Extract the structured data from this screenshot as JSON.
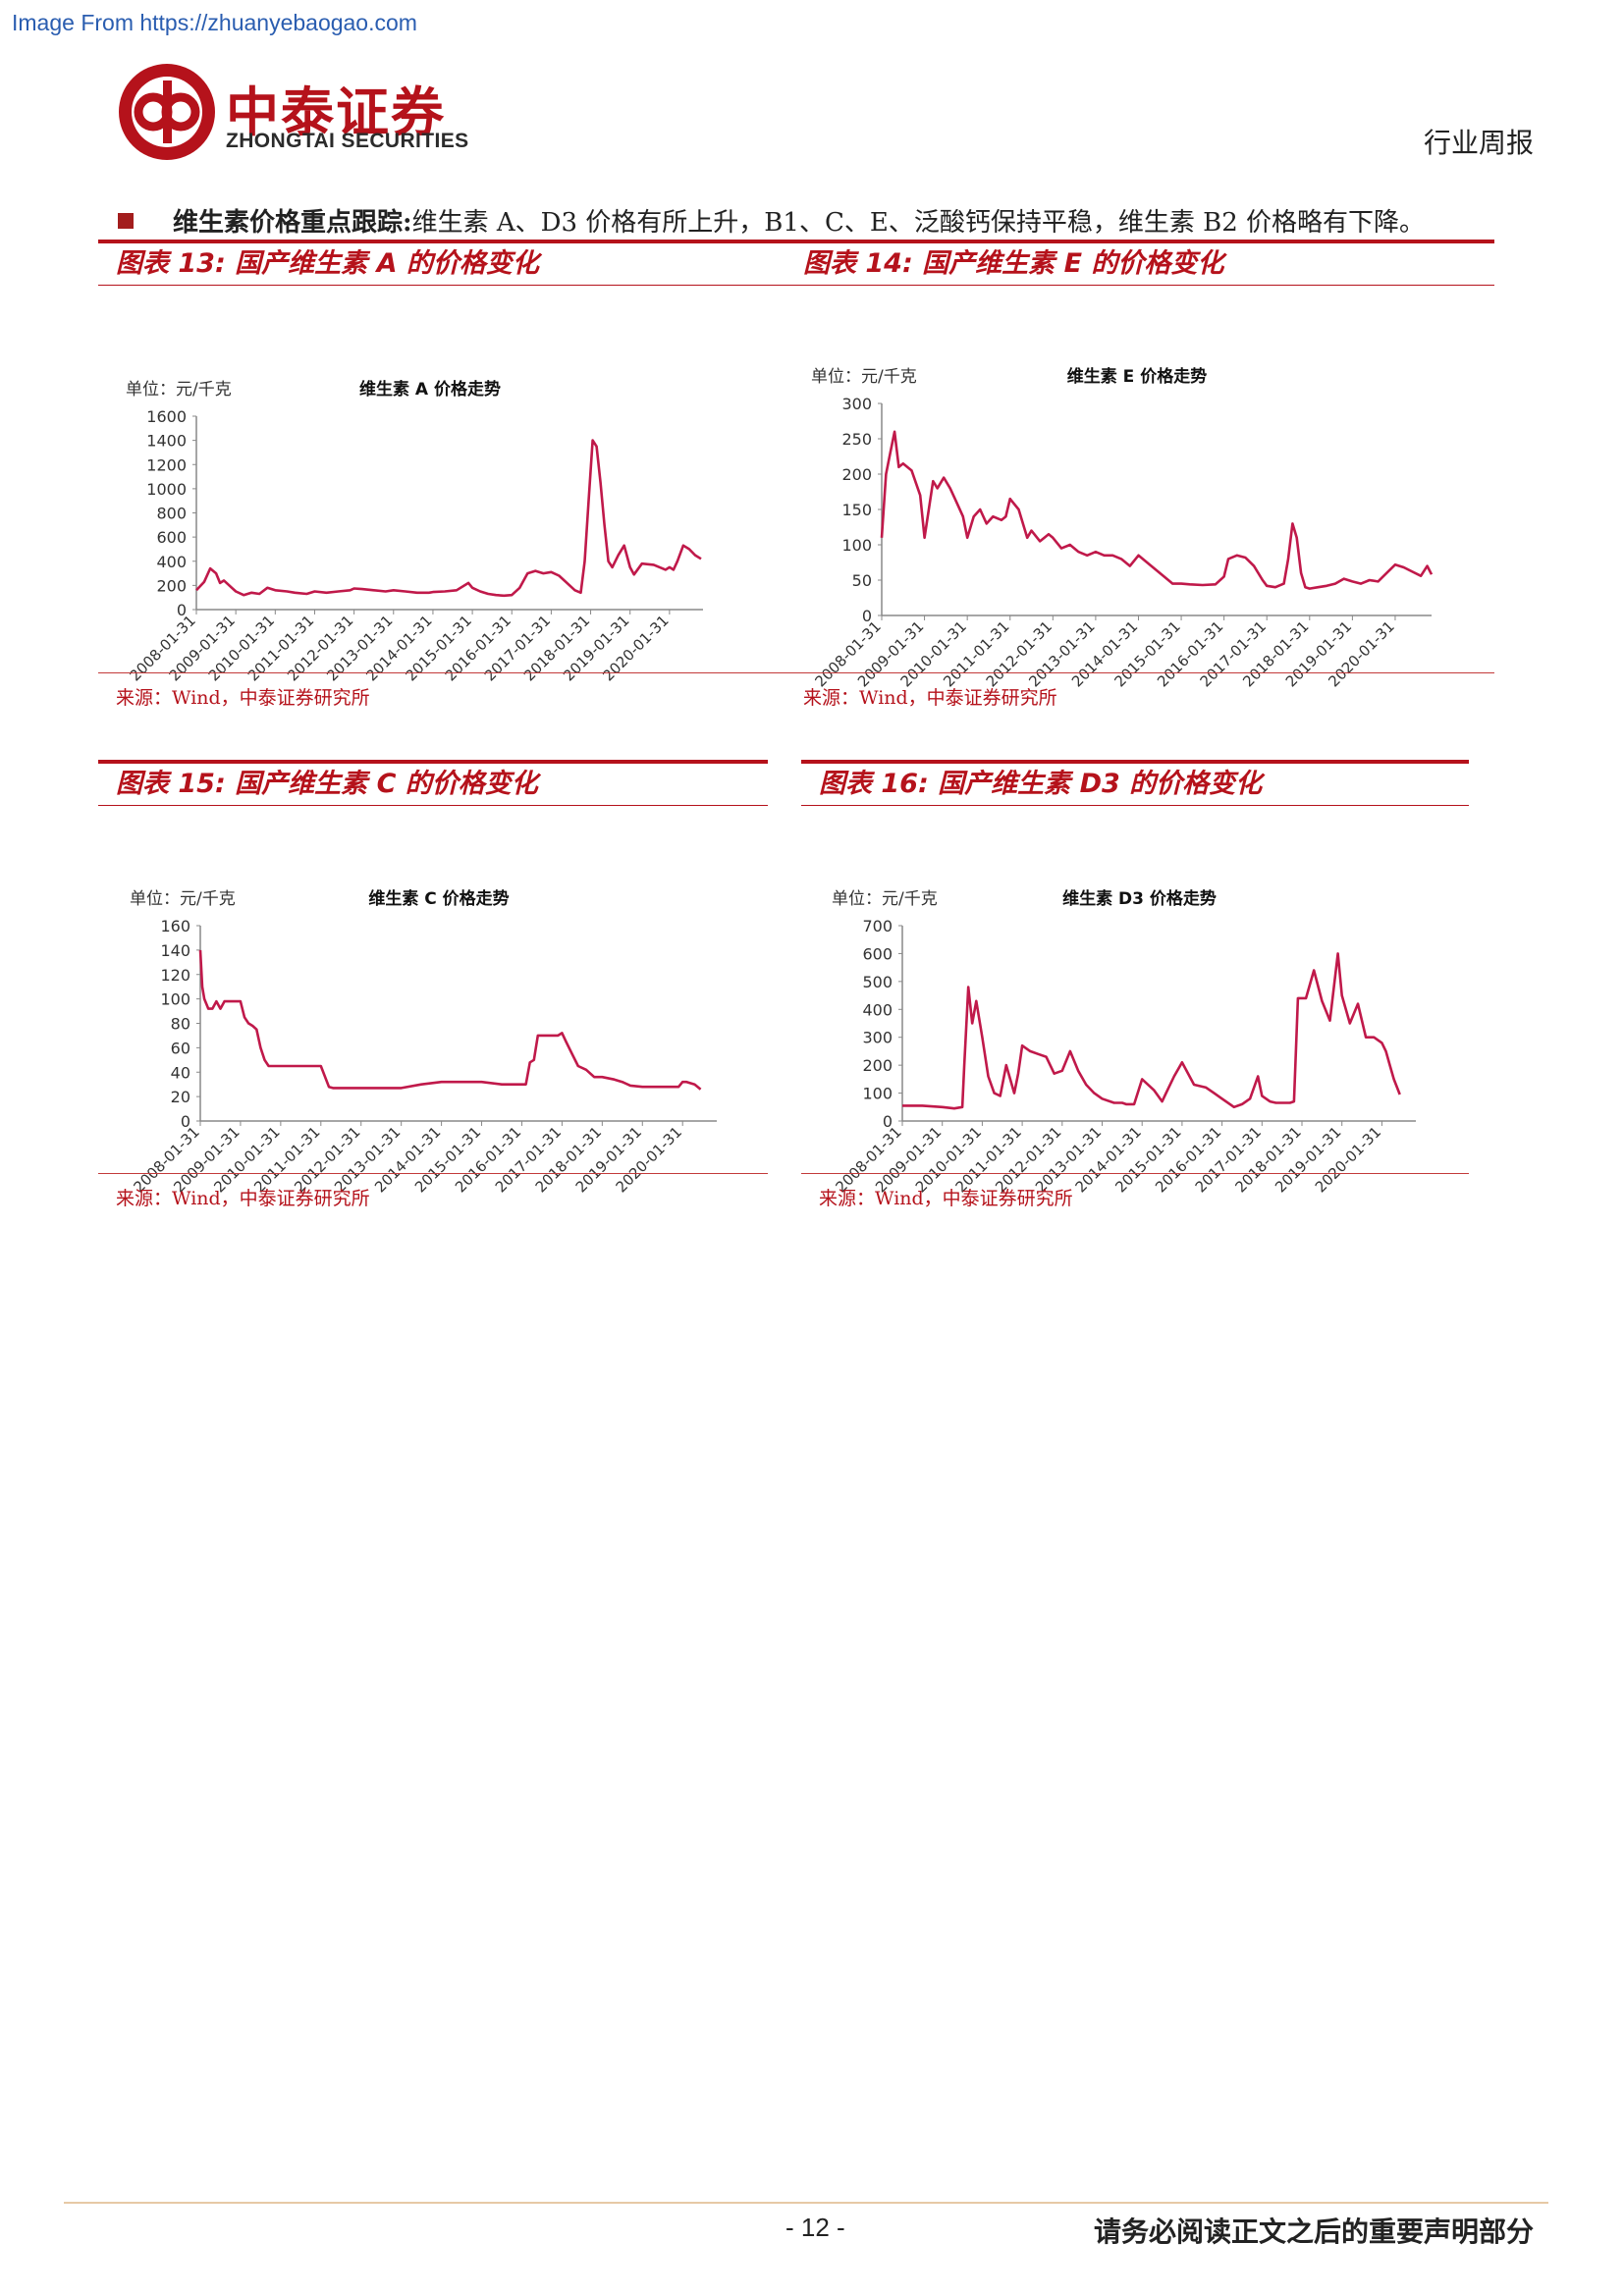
{
  "header": {
    "source_link": "Image From https://zhuanyebaogao.com",
    "logo_cn": "中泰证券",
    "logo_en": "ZHONGTAI SECURITIES",
    "report_type": "行业周报"
  },
  "bullet": {
    "key": "维生素价格重点跟踪:",
    "text": "维生素 A、D3 价格有所上升，B1、C、E、泛酸钙保持平稳，维生素 B2 价格略有下降。"
  },
  "panels": [
    {
      "title": "图表 13:  国产维生素 A 的价格变化",
      "source": "来源：Wind，中泰证券研究所"
    },
    {
      "title": "图表 14:  国产维生素 E 的价格变化",
      "source": "来源：Wind，中泰证券研究所"
    },
    {
      "title": "图表 15:  国产维生素 C 的价格变化",
      "source": "来源：Wind，中泰证券研究所"
    },
    {
      "title": "图表 16:  国产维生素 D3 的价格变化",
      "source": "来源：Wind，中泰证券研究所"
    }
  ],
  "footer": {
    "page_number": "- 12 -",
    "disclaimer": "请务必阅读正文之后的重要声明部分"
  },
  "chart_data": [
    {
      "type": "line",
      "title": "维生素 A 价格走势",
      "unit_label": "单位：元/千克",
      "ylim": [
        0,
        1600
      ],
      "yticks": [
        0,
        200,
        400,
        600,
        800,
        1000,
        1200,
        1400,
        1600
      ],
      "xlim": [
        2008.0,
        2020.85
      ],
      "x_tick_labels": [
        "2008-01-31",
        "2009-01-31",
        "2010-01-31",
        "2011-01-31",
        "2012-01-31",
        "2013-01-31",
        "2014-01-31",
        "2015-01-31",
        "2016-01-31",
        "2017-01-31",
        "2018-01-31",
        "2019-01-31",
        "2020-01-31"
      ],
      "color": "#c0194a",
      "series": [
        {
          "x": [
            2008.0,
            2008.2,
            2008.35,
            2008.5,
            2008.6,
            2008.7,
            2008.9,
            2009.0,
            2009.2,
            2009.4,
            2009.6,
            2009.8,
            2010.0,
            2010.3,
            2010.5,
            2010.8,
            2011.0,
            2011.3,
            2011.6,
            2011.9,
            2012.0,
            2012.2,
            2012.5,
            2012.8,
            2013.0,
            2013.3,
            2013.6,
            2013.9,
            2014.0,
            2014.3,
            2014.6,
            2014.9,
            2015.0,
            2015.2,
            2015.4,
            2015.6,
            2015.8,
            2016.0,
            2016.2,
            2016.4,
            2016.6,
            2016.8,
            2017.0,
            2017.2,
            2017.4,
            2017.6,
            2017.75,
            2017.85,
            2017.95,
            2018.05,
            2018.15,
            2018.25,
            2018.35,
            2018.45,
            2018.55,
            2018.7,
            2018.85,
            2019.0,
            2019.1,
            2019.3,
            2019.6,
            2019.9,
            2020.0,
            2020.1,
            2020.2,
            2020.35,
            2020.5,
            2020.65,
            2020.8
          ],
          "y": [
            160,
            230,
            340,
            300,
            220,
            240,
            180,
            150,
            120,
            140,
            130,
            180,
            160,
            150,
            140,
            130,
            150,
            140,
            150,
            160,
            175,
            170,
            160,
            150,
            160,
            150,
            140,
            140,
            145,
            150,
            160,
            220,
            180,
            150,
            130,
            120,
            115,
            120,
            180,
            300,
            320,
            300,
            310,
            280,
            220,
            160,
            140,
            400,
            900,
            1400,
            1350,
            1050,
            700,
            400,
            350,
            450,
            530,
            350,
            290,
            380,
            370,
            330,
            350,
            330,
            400,
            530,
            500,
            450,
            420
          ]
        }
      ]
    },
    {
      "type": "line",
      "title": "维生素 E 价格走势",
      "unit_label": "单位：元/千克",
      "ylim": [
        0,
        300
      ],
      "yticks": [
        0,
        50,
        100,
        150,
        200,
        250,
        300
      ],
      "xlim": [
        2008.0,
        2020.85
      ],
      "x_tick_labels": [
        "2008-01-31",
        "2009-01-31",
        "2010-01-31",
        "2011-01-31",
        "2012-01-31",
        "2013-01-31",
        "2014-01-31",
        "2015-01-31",
        "2016-01-31",
        "2017-01-31",
        "2018-01-31",
        "2019-01-31",
        "2020-01-31"
      ],
      "color": "#c0194a",
      "series": [
        {
          "x": [
            2008.0,
            2008.1,
            2008.2,
            2008.3,
            2008.4,
            2008.5,
            2008.7,
            2008.9,
            2009.0,
            2009.2,
            2009.3,
            2009.45,
            2009.6,
            2009.75,
            2009.9,
            2010.0,
            2010.15,
            2010.3,
            2010.45,
            2010.6,
            2010.8,
            2010.9,
            2011.0,
            2011.2,
            2011.4,
            2011.5,
            2011.7,
            2011.9,
            2012.0,
            2012.2,
            2012.4,
            2012.6,
            2012.8,
            2013.0,
            2013.2,
            2013.4,
            2013.6,
            2013.8,
            2014.0,
            2014.3,
            2014.6,
            2014.8,
            2015.0,
            2015.2,
            2015.5,
            2015.8,
            2016.0,
            2016.1,
            2016.3,
            2016.5,
            2016.7,
            2016.9,
            2017.0,
            2017.2,
            2017.4,
            2017.5,
            2017.6,
            2017.7,
            2017.8,
            2017.9,
            2018.0,
            2018.2,
            2018.4,
            2018.6,
            2018.8,
            2019.0,
            2019.2,
            2019.4,
            2019.6,
            2019.8,
            2020.0,
            2020.2,
            2020.4,
            2020.6,
            2020.75,
            2020.85
          ],
          "y": [
            110,
            200,
            230,
            260,
            210,
            215,
            205,
            170,
            110,
            190,
            180,
            195,
            180,
            160,
            140,
            110,
            140,
            150,
            130,
            140,
            135,
            140,
            165,
            150,
            110,
            120,
            105,
            115,
            110,
            95,
            100,
            90,
            85,
            90,
            85,
            85,
            80,
            70,
            85,
            70,
            55,
            45,
            45,
            44,
            43,
            44,
            55,
            80,
            85,
            82,
            70,
            50,
            42,
            40,
            45,
            80,
            130,
            110,
            60,
            40,
            38,
            40,
            42,
            45,
            52,
            48,
            45,
            50,
            48,
            60,
            72,
            68,
            62,
            56,
            70,
            58
          ]
        }
      ]
    },
    {
      "type": "line",
      "title": "维生素 C 价格走势",
      "unit_label": "单位：元/千克",
      "ylim": [
        0,
        160
      ],
      "yticks": [
        0,
        20,
        40,
        60,
        80,
        100,
        120,
        140,
        160
      ],
      "xlim": [
        2008.0,
        2020.85
      ],
      "x_tick_labels": [
        "2008-01-31",
        "2009-01-31",
        "2010-01-31",
        "2011-01-31",
        "2012-01-31",
        "2013-01-31",
        "2014-01-31",
        "2015-01-31",
        "2016-01-31",
        "2017-01-31",
        "2018-01-31",
        "2019-01-31",
        "2020-01-31"
      ],
      "color": "#c0194a",
      "series": [
        {
          "x": [
            2008.0,
            2008.05,
            2008.1,
            2008.2,
            2008.3,
            2008.4,
            2008.5,
            2008.6,
            2008.8,
            2009.0,
            2009.1,
            2009.2,
            2009.3,
            2009.4,
            2009.5,
            2009.6,
            2009.7,
            2009.8,
            2010.0,
            2010.5,
            2011.0,
            2011.2,
            2011.3,
            2011.4,
            2011.6,
            2012.0,
            2012.5,
            2013.0,
            2013.5,
            2014.0,
            2014.1,
            2014.5,
            2015.0,
            2015.5,
            2016.0,
            2016.1,
            2016.2,
            2016.3,
            2016.4,
            2016.6,
            2016.9,
            2017.0,
            2017.1,
            2017.25,
            2017.4,
            2017.6,
            2017.8,
            2018.0,
            2018.3,
            2018.5,
            2018.7,
            2019.0,
            2019.5,
            2019.7,
            2019.9,
            2020.0,
            2020.1,
            2020.3,
            2020.45
          ],
          "y": [
            140,
            110,
            100,
            92,
            92,
            98,
            92,
            98,
            98,
            98,
            85,
            80,
            78,
            75,
            60,
            50,
            45,
            45,
            45,
            45,
            45,
            28,
            27,
            27,
            27,
            27,
            27,
            27,
            30,
            32,
            32,
            32,
            32,
            30,
            30,
            30,
            48,
            50,
            70,
            70,
            70,
            72,
            65,
            55,
            45,
            42,
            36,
            36,
            34,
            32,
            29,
            28,
            28,
            28,
            28,
            32,
            32,
            30,
            26
          ]
        }
      ]
    },
    {
      "type": "line",
      "title": "维生素 D3 价格走势",
      "unit_label": "单位：元/千克",
      "ylim": [
        0,
        700
      ],
      "yticks": [
        0,
        100,
        200,
        300,
        400,
        500,
        600,
        700
      ],
      "xlim": [
        2008.0,
        2020.85
      ],
      "x_tick_labels": [
        "2008-01-31",
        "2009-01-31",
        "2010-01-31",
        "2011-01-31",
        "2012-01-31",
        "2013-01-31",
        "2014-01-31",
        "2015-01-31",
        "2016-01-31",
        "2017-01-31",
        "2018-01-31",
        "2019-01-31",
        "2020-01-31"
      ],
      "color": "#c0194a",
      "series": [
        {
          "x": [
            2008.0,
            2008.5,
            2009.0,
            2009.3,
            2009.5,
            2009.55,
            2009.65,
            2009.75,
            2009.85,
            2010.0,
            2010.15,
            2010.3,
            2010.45,
            2010.6,
            2010.8,
            2010.9,
            2011.0,
            2011.2,
            2011.4,
            2011.6,
            2011.8,
            2012.0,
            2012.2,
            2012.4,
            2012.6,
            2012.8,
            2013.0,
            2013.3,
            2013.5,
            2013.6,
            2013.8,
            2014.0,
            2014.3,
            2014.5,
            2014.6,
            2014.8,
            2015.0,
            2015.3,
            2015.6,
            2015.8,
            2016.0,
            2016.2,
            2016.3,
            2016.5,
            2016.7,
            2016.9,
            2017.0,
            2017.2,
            2017.35,
            2017.45,
            2017.55,
            2017.7,
            2017.8,
            2017.9,
            2018.0,
            2018.1,
            2018.3,
            2018.5,
            2018.7,
            2018.9,
            2019.0,
            2019.2,
            2019.4,
            2019.6,
            2019.8,
            2020.0,
            2020.1,
            2020.2,
            2020.3,
            2020.45
          ],
          "y": [
            55,
            55,
            50,
            45,
            50,
            200,
            480,
            350,
            430,
            300,
            160,
            100,
            90,
            200,
            100,
            170,
            270,
            250,
            240,
            230,
            170,
            180,
            250,
            180,
            130,
            100,
            80,
            65,
            65,
            60,
            60,
            150,
            110,
            70,
            100,
            160,
            210,
            130,
            120,
            100,
            80,
            60,
            50,
            60,
            80,
            160,
            90,
            70,
            65,
            65,
            65,
            65,
            70,
            440,
            440,
            440,
            540,
            430,
            360,
            600,
            450,
            350,
            420,
            300,
            300,
            280,
            250,
            200,
            150,
            95
          ]
        }
      ]
    }
  ]
}
